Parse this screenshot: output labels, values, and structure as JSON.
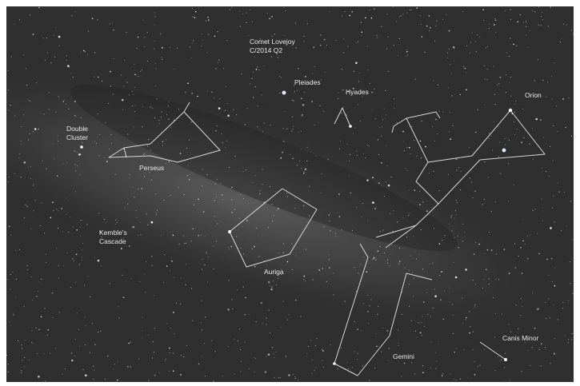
{
  "image": {
    "labels": {
      "comet_lovejoy": [
        "Comet Lovejoy",
        "C/2014 Q2"
      ],
      "pleiades": "Pleiades",
      "hyades": "Hyades",
      "orion": "Orion",
      "double_cluster": [
        "Double",
        "Cluster"
      ],
      "perseus": "Perseus",
      "kembles_cascade": [
        "Kemble's",
        "Cascade"
      ],
      "auriga": "Auriga",
      "gemini": "Gemini",
      "canis_minor": "Canis Minor"
    }
  }
}
